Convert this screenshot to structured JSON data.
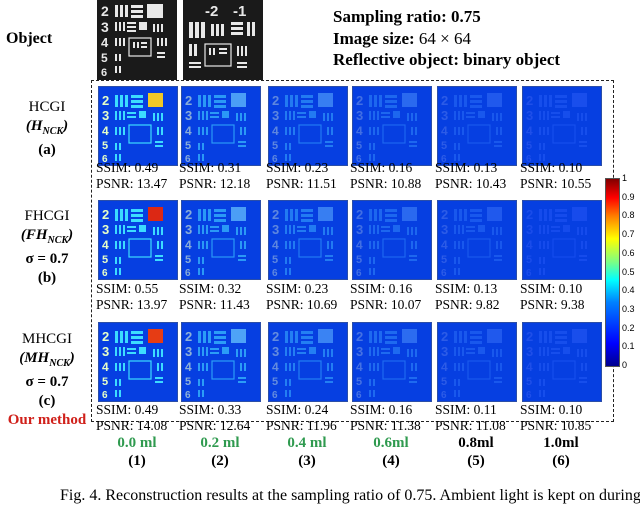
{
  "header": {
    "object_label": "Object",
    "line1": "Sampling ratio: 0.75",
    "line2_prefix": "Image size: ",
    "line2_value": "64 × 64",
    "line3": "Reflective object: binary object"
  },
  "rows": [
    {
      "name": "HCGI",
      "sub": "(H",
      "subscript": "NCK",
      "close": ")",
      "extra": "",
      "tag": "(a)",
      "note": "",
      "metrics": [
        {
          "ssim": "SSIM: 0.49",
          "psnr": "PSNR: 13.47"
        },
        {
          "ssim": "SSIM: 0.31",
          "psnr": "PSNR: 12.18"
        },
        {
          "ssim": "SSIM: 0.23",
          "psnr": "PSNR: 11.51"
        },
        {
          "ssim": "SSIM: 0.16",
          "psnr": "PSNR: 10.88"
        },
        {
          "ssim": "SSIM: 0.13",
          "psnr": "PSNR: 10.43"
        },
        {
          "ssim": "SSIM: 0.10",
          "psnr": "PSNR: 10.55"
        }
      ]
    },
    {
      "name": "FHCGI",
      "sub": "(FH",
      "subscript": "NCK",
      "close": ")",
      "extra": "σ = 0.7",
      "tag": "(b)",
      "note": "",
      "metrics": [
        {
          "ssim": "SSIM: 0.55",
          "psnr": "PSNR: 13.97"
        },
        {
          "ssim": "SSIM: 0.32",
          "psnr": "PSNR: 11.43"
        },
        {
          "ssim": "SSIM: 0.23",
          "psnr": "PSNR: 10.69"
        },
        {
          "ssim": "SSIM: 0.16",
          "psnr": "PSNR: 10.07"
        },
        {
          "ssim": "SSIM: 0.13",
          "psnr": "PSNR: 9.82"
        },
        {
          "ssim": "SSIM: 0.10",
          "psnr": "PSNR: 9.38"
        }
      ]
    },
    {
      "name": "MHCGI",
      "sub": "(MH",
      "subscript": "NCK",
      "close": ")",
      "extra": "σ = 0.7",
      "tag": "(c)",
      "note": "Our method",
      "metrics": [
        {
          "ssim": "SSIM: 0.49",
          "psnr": "PSNR: 14.08"
        },
        {
          "ssim": "SSIM: 0.33",
          "psnr": "PSNR: 12.64"
        },
        {
          "ssim": "SSIM: 0.24",
          "psnr": "PSNR: 11.96"
        },
        {
          "ssim": "SSIM: 0.16",
          "psnr": "PSNR: 11.38"
        },
        {
          "ssim": "SSIM: 0.11",
          "psnr": "PSNR: 11.08"
        },
        {
          "ssim": "SSIM: 0.10",
          "psnr": "PSNR: 10.85"
        }
      ]
    }
  ],
  "columns": [
    {
      "amount": "0.0 ml",
      "index": "(1)",
      "color": "#2f9a4f"
    },
    {
      "amount": "0.2 ml",
      "index": "(2)",
      "color": "#2f9a4f"
    },
    {
      "amount": "0.4 ml",
      "index": "(3)",
      "color": "#2f9a4f"
    },
    {
      "amount": "0.6ml",
      "index": "(4)",
      "color": "#2f9a4f"
    },
    {
      "amount": "0.8ml",
      "index": "(5)",
      "color": "#000000"
    },
    {
      "amount": "1.0ml",
      "index": "(6)",
      "color": "#000000"
    }
  ],
  "colorbar_ticks": [
    "1",
    "0.9",
    "0.8",
    "0.7",
    "0.6",
    "0.5",
    "0.4",
    "0.3",
    "0.2",
    "0.1",
    "0"
  ],
  "object_digits": {
    "left": [
      "2",
      "3",
      "4",
      "5",
      "6"
    ],
    "right_top": [
      "-2",
      "-1"
    ]
  },
  "tile_digits": [
    "2",
    "3",
    "4",
    "5",
    "6"
  ],
  "caption": "Fig. 4. Reconstruction results at the sampling ratio of 0.75. Ambient light is kept on during",
  "colors": {
    "accent_red": "#d0201a",
    "accent_green": "#2f9a4f"
  }
}
